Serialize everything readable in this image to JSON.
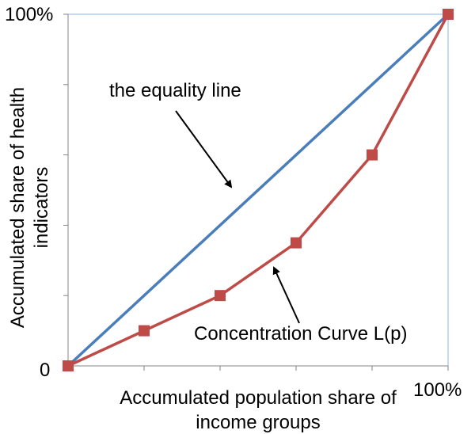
{
  "chart_data": {
    "type": "line",
    "xlabel_lines": [
      "Accumulated population share of",
      "income groups"
    ],
    "ylabel_lines": [
      "Accumulated share of health",
      "indicators"
    ],
    "y_tick_labels": {
      "min": "0",
      "max": "100%"
    },
    "x_tick_labels": {
      "max": "100%"
    },
    "xlim": [
      0,
      100
    ],
    "ylim": [
      0,
      100
    ],
    "x_ticks": [
      0,
      20,
      40,
      60,
      80,
      100
    ],
    "y_ticks": [
      0,
      20,
      40,
      60,
      80,
      100
    ],
    "grid": false,
    "series": [
      {
        "x": [
          0,
          100
        ],
        "y": [
          0,
          100
        ],
        "color": "#4a7ebb",
        "marker": "none"
      },
      {
        "x": [
          0,
          20,
          40,
          60,
          80,
          100
        ],
        "y": [
          0,
          10,
          20,
          35,
          60,
          100
        ],
        "color": "#be4b48",
        "marker": "square"
      }
    ],
    "annotations": [
      {
        "text": "the equality line"
      },
      {
        "text": "Concentration Curve L(p)"
      }
    ]
  }
}
